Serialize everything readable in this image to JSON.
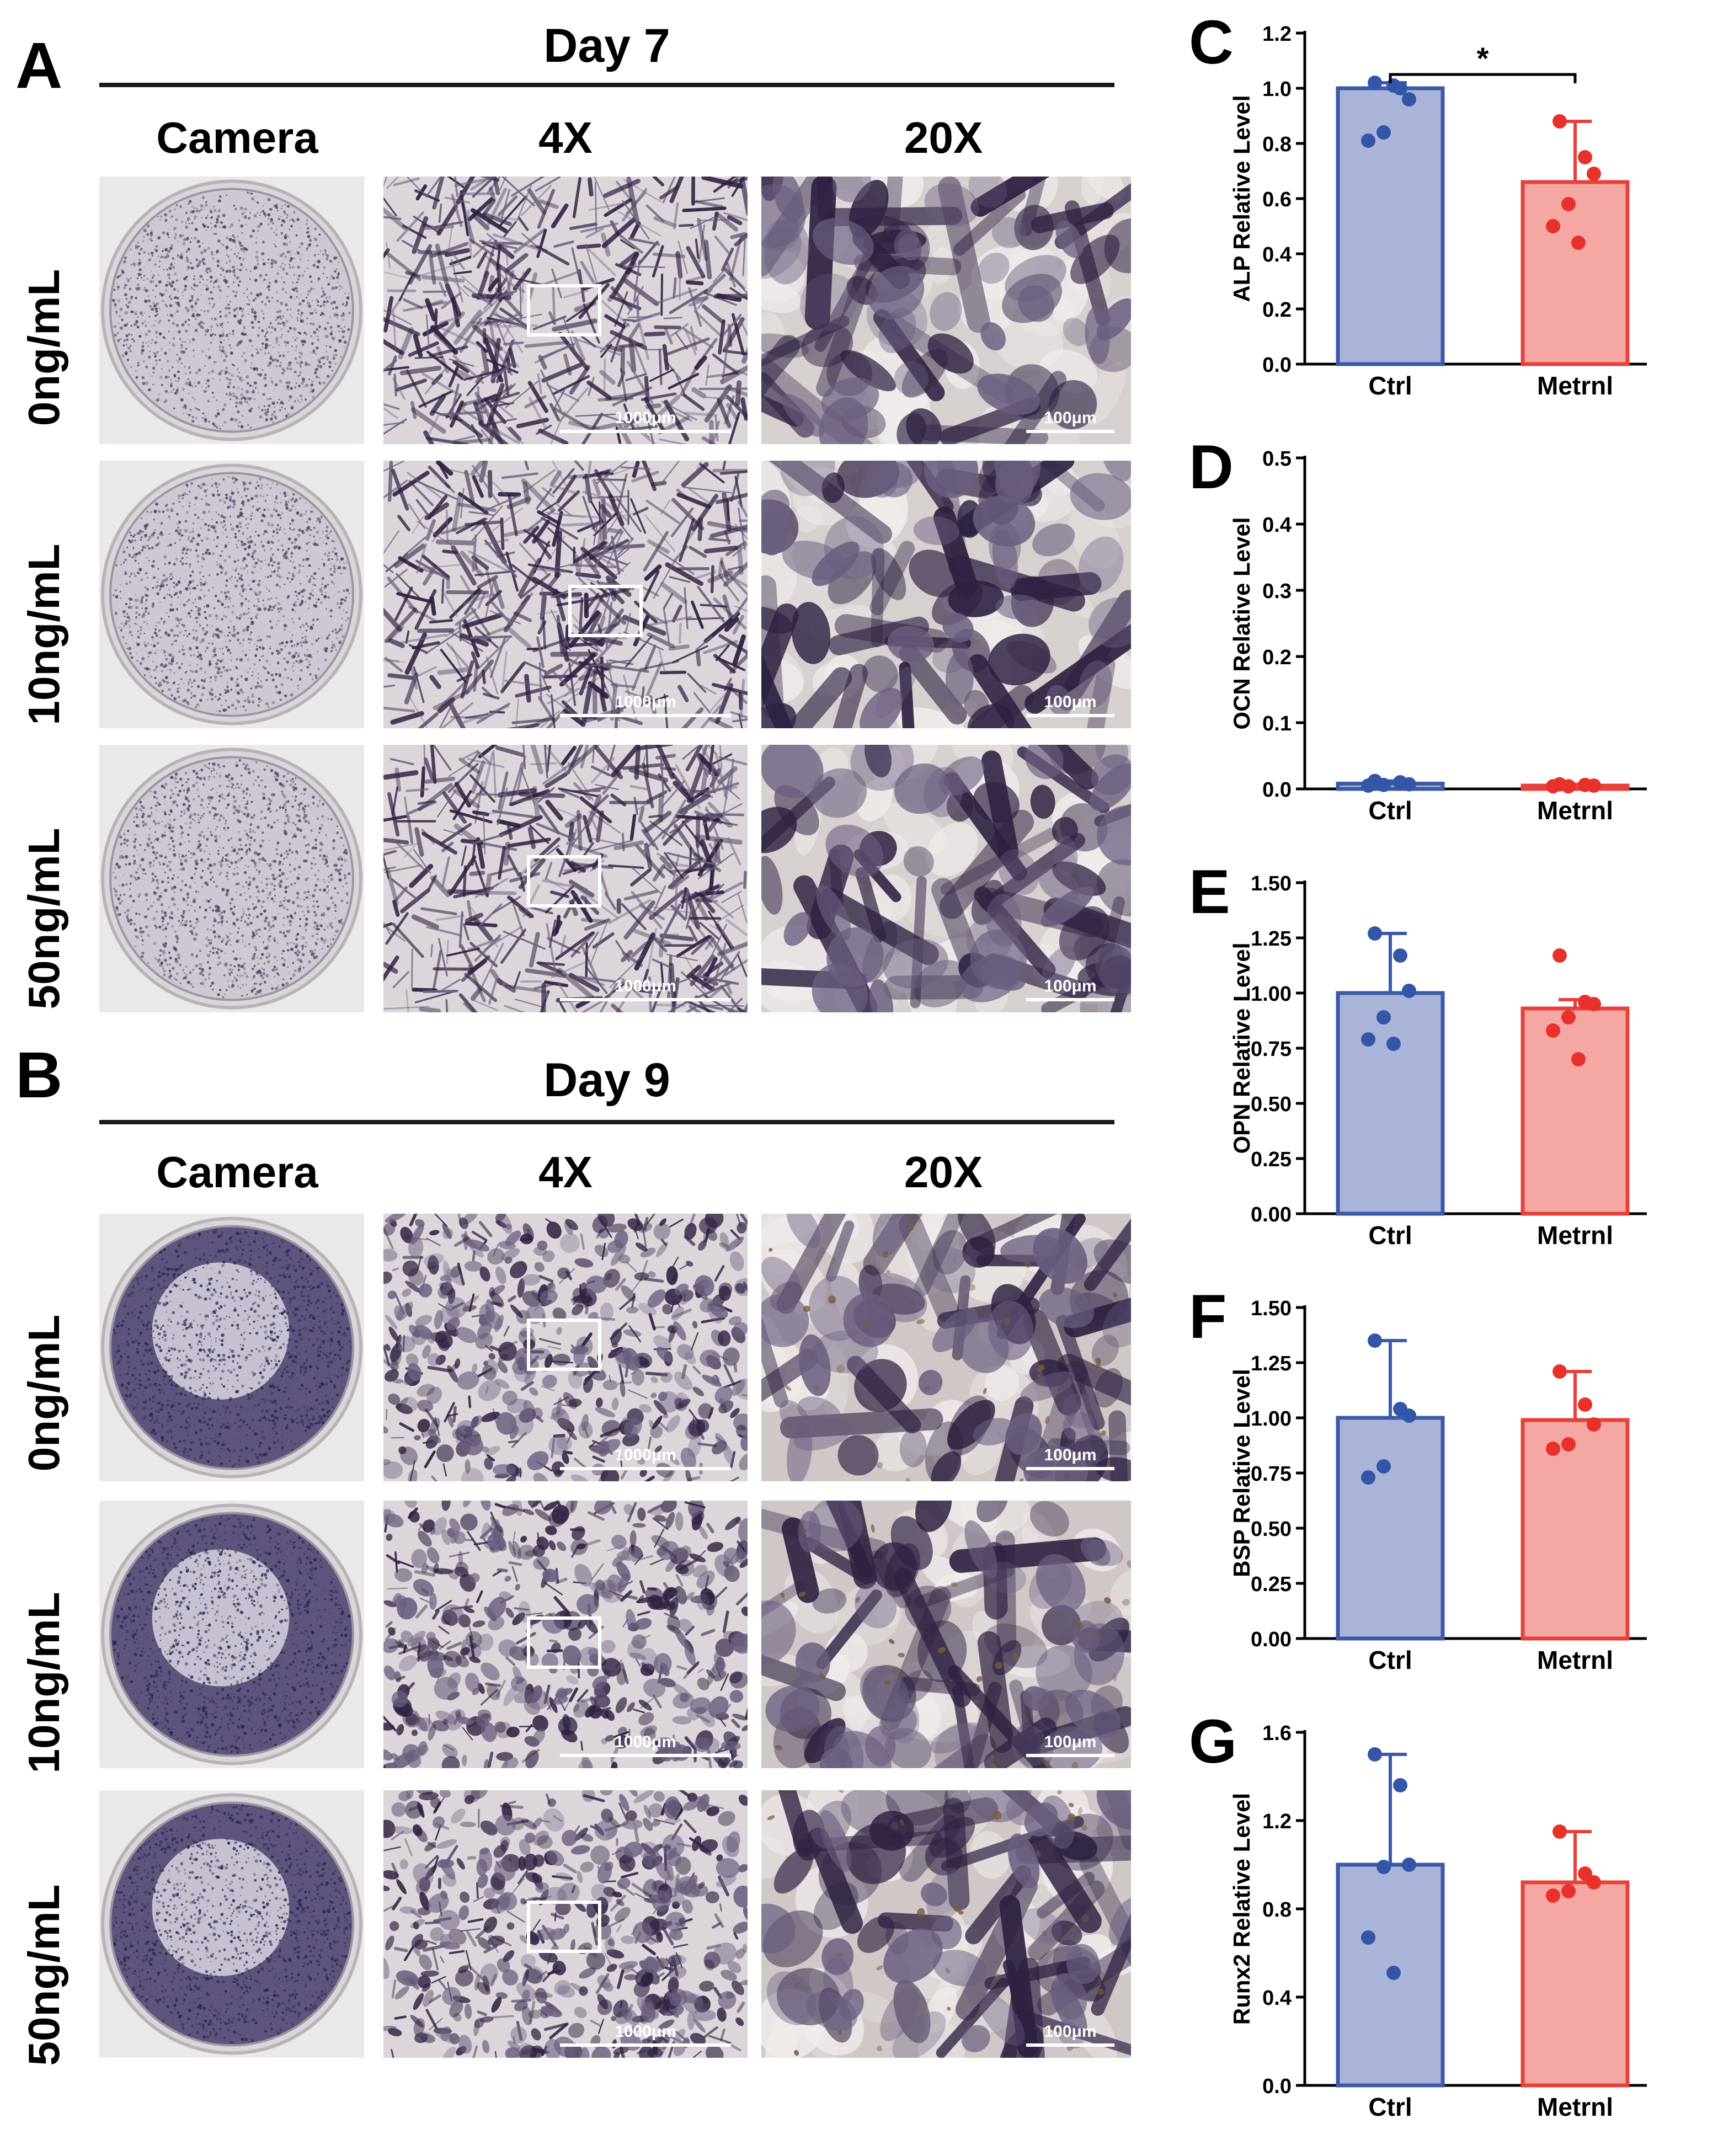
{
  "colors": {
    "ctrl_fill": "#aab4d8",
    "ctrl_stroke": "#3b5aa8",
    "ctrl_point": "#3456a8",
    "metrnl_fill": "#f5a7a3",
    "metrnl_stroke": "#e8403a",
    "metrnl_point": "#e8312b",
    "stain_dark": "#2e2142",
    "stain_mid": "#6a5e80",
    "background_tissue": "#d8d2d6"
  },
  "panelA": {
    "letter": "A",
    "title": "Day 7",
    "columns": [
      "Camera",
      "4X",
      "20X"
    ],
    "rows": [
      "0ng/mL",
      "10ng/mL",
      "50ng/mL"
    ],
    "scale_4x": "1000μm",
    "scale_20x": "100μm",
    "dish_stain": "light"
  },
  "panelB": {
    "letter": "B",
    "title": "Day 9",
    "columns": [
      "Camera",
      "4X",
      "20X"
    ],
    "rows": [
      "0ng/mL",
      "10ng/mL",
      "50ng/mL"
    ],
    "scale_4x": "1000μm",
    "scale_20x": "100μm",
    "dish_stain": "dark"
  },
  "chart_data": [
    {
      "panel": "C",
      "type": "bar",
      "ylabel": "ALP Relative Level",
      "categories": [
        "Ctrl",
        "Metrnl"
      ],
      "values": [
        1.0,
        0.66
      ],
      "error_upper": [
        1.02,
        0.88
      ],
      "points": [
        [
          1.02,
          1.0,
          0.96,
          0.84,
          0.81,
          1.01
        ],
        [
          0.88,
          0.75,
          0.69,
          0.58,
          0.5,
          0.44
        ]
      ],
      "ylim": [
        0,
        1.2
      ],
      "yticks": [
        "0.0",
        "0.2",
        "0.4",
        "0.6",
        "0.8",
        "1.0",
        "1.2"
      ],
      "significance": "*"
    },
    {
      "panel": "D",
      "type": "bar",
      "ylabel": "OCN Relative Level",
      "categories": [
        "Ctrl",
        "Metrnl"
      ],
      "values": [
        0.008,
        0.005
      ],
      "error_upper": [
        0.012,
        0.007
      ],
      "points": [
        [
          0.012,
          0.01,
          0.007,
          0.006,
          0.005
        ],
        [
          0.007,
          0.006,
          0.005,
          0.004,
          0.004
        ]
      ],
      "ylim": [
        0,
        0.5
      ],
      "yticks": [
        "0.0",
        "0.1",
        "0.2",
        "0.3",
        "0.4",
        "0.5"
      ]
    },
    {
      "panel": "E",
      "type": "bar",
      "ylabel": "OPN Relative Level",
      "categories": [
        "Ctrl",
        "Metrnl"
      ],
      "values": [
        1.0,
        0.93
      ],
      "error_upper": [
        1.27,
        0.97
      ],
      "points": [
        [
          1.27,
          1.17,
          1.01,
          0.89,
          0.79,
          0.77
        ],
        [
          1.17,
          0.96,
          0.95,
          0.89,
          0.83,
          0.7
        ]
      ],
      "ylim": [
        0,
        1.5
      ],
      "yticks": [
        "0.00",
        "0.25",
        "0.50",
        "0.75",
        "1.00",
        "1.25",
        "1.50"
      ]
    },
    {
      "panel": "F",
      "type": "bar",
      "ylabel": "BSP Relative Level",
      "categories": [
        "Ctrl",
        "Metrnl"
      ],
      "values": [
        1.0,
        0.99
      ],
      "error_upper": [
        1.35,
        1.21
      ],
      "points": [
        [
          1.35,
          1.04,
          1.01,
          0.78,
          0.73
        ],
        [
          1.21,
          1.06,
          0.97,
          0.88,
          0.86
        ]
      ],
      "ylim": [
        0,
        1.5
      ],
      "yticks": [
        "0.00",
        "0.25",
        "0.50",
        "0.75",
        "1.00",
        "1.25",
        "1.50"
      ]
    },
    {
      "panel": "G",
      "type": "bar",
      "ylabel": "Runx2 Relative Level",
      "categories": [
        "Ctrl",
        "Metrnl"
      ],
      "values": [
        1.0,
        0.92
      ],
      "error_upper": [
        1.5,
        1.15
      ],
      "points": [
        [
          1.5,
          1.36,
          1.0,
          0.99,
          0.67,
          0.51
        ],
        [
          1.15,
          0.96,
          0.92,
          0.88,
          0.86
        ]
      ],
      "ylim": [
        0,
        1.6
      ],
      "yticks": [
        "0.0",
        "0.4",
        "0.8",
        "1.2",
        "1.6"
      ]
    }
  ]
}
